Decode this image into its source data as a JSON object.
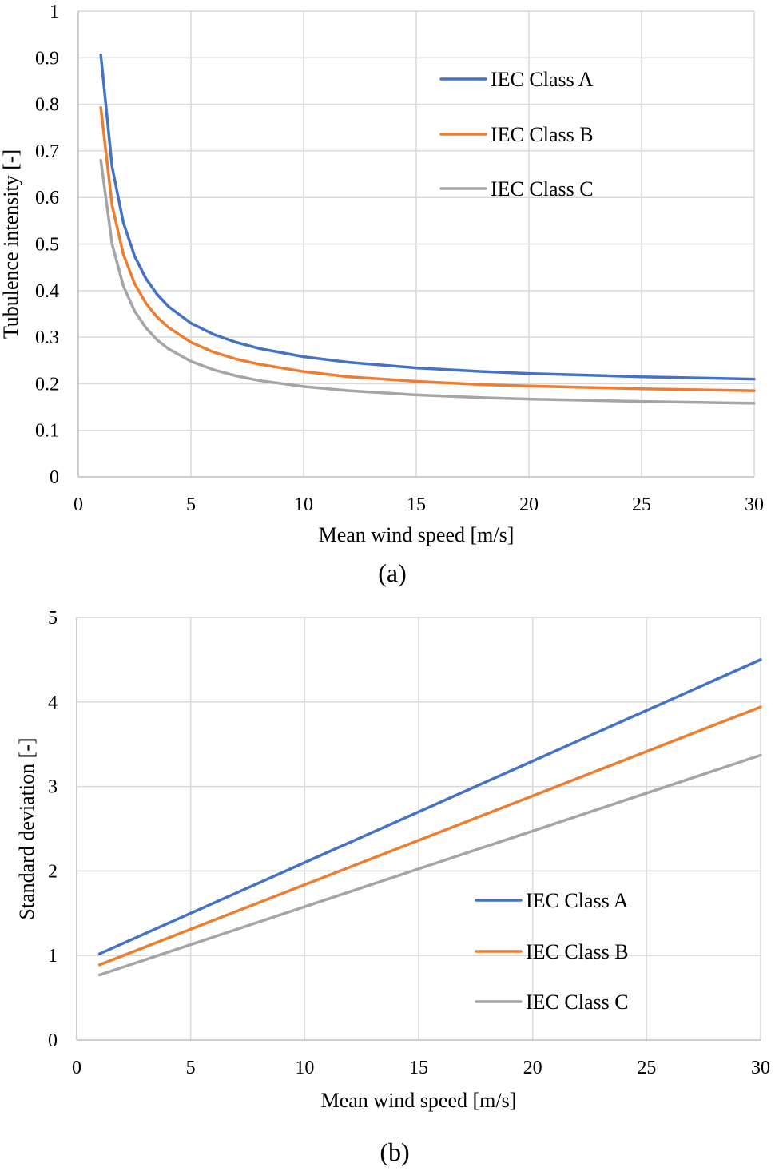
{
  "colors": {
    "class_a": "#4472C4",
    "class_b": "#ED7D31",
    "class_c": "#A5A5A5"
  },
  "chart_data": [
    {
      "type": "line",
      "panel_label": "(a)",
      "xlabel": "Mean wind speed [m/s]",
      "ylabel": "Tubulence intensity [-]",
      "xlim": [
        0,
        30
      ],
      "ylim": [
        0,
        1
      ],
      "xticks": [
        0,
        5,
        10,
        15,
        20,
        25,
        30
      ],
      "yticks": [
        0,
        0.1,
        0.2,
        0.3,
        0.4,
        0.5,
        0.6,
        0.7,
        0.8,
        0.9,
        1
      ],
      "ytick_labels": [
        "0",
        "0.1",
        "0.2",
        "0.3",
        "0.4",
        "0.5",
        "0.6",
        "0.7",
        "0.8",
        "0.9",
        "1"
      ],
      "grid": true,
      "legend_position": "top-right",
      "x": [
        1,
        1.5,
        2,
        2.5,
        3,
        3.5,
        4,
        5,
        6,
        7,
        8,
        10,
        12,
        15,
        18,
        20,
        25,
        30
      ],
      "series": [
        {
          "name": "IEC Class A",
          "color_key": "class_a",
          "values": [
            0.906,
            0.666,
            0.546,
            0.474,
            0.426,
            0.392,
            0.366,
            0.33,
            0.306,
            0.289,
            0.276,
            0.258,
            0.246,
            0.234,
            0.226,
            0.222,
            0.215,
            0.21
          ]
        },
        {
          "name": "IEC Class B",
          "color_key": "class_b",
          "values": [
            0.793,
            0.583,
            0.478,
            0.415,
            0.373,
            0.343,
            0.321,
            0.289,
            0.268,
            0.253,
            0.242,
            0.226,
            0.215,
            0.205,
            0.198,
            0.195,
            0.189,
            0.185
          ]
        },
        {
          "name": "IEC Class C",
          "color_key": "class_c",
          "values": [
            0.68,
            0.5,
            0.41,
            0.356,
            0.32,
            0.294,
            0.275,
            0.248,
            0.23,
            0.217,
            0.207,
            0.194,
            0.185,
            0.176,
            0.17,
            0.167,
            0.162,
            0.158
          ]
        }
      ]
    },
    {
      "type": "line",
      "panel_label": "(b)",
      "xlabel": "Mean wind speed [m/s]",
      "ylabel": "Standard deviation [-]",
      "xlim": [
        0,
        30
      ],
      "ylim": [
        0,
        5
      ],
      "xticks": [
        0,
        5,
        10,
        15,
        20,
        25,
        30
      ],
      "yticks": [
        0,
        1,
        2,
        3,
        4,
        5
      ],
      "ytick_labels": [
        "0",
        "1",
        "2",
        "3",
        "4",
        "5"
      ],
      "grid": true,
      "legend_position": "bottom-right",
      "x": [
        1,
        30
      ],
      "series": [
        {
          "name": "IEC Class A",
          "color_key": "class_a",
          "values": [
            1.02,
            4.5
          ]
        },
        {
          "name": "IEC Class B",
          "color_key": "class_b",
          "values": [
            0.89,
            3.94
          ]
        },
        {
          "name": "IEC Class C",
          "color_key": "class_c",
          "values": [
            0.77,
            3.37
          ]
        }
      ]
    }
  ]
}
